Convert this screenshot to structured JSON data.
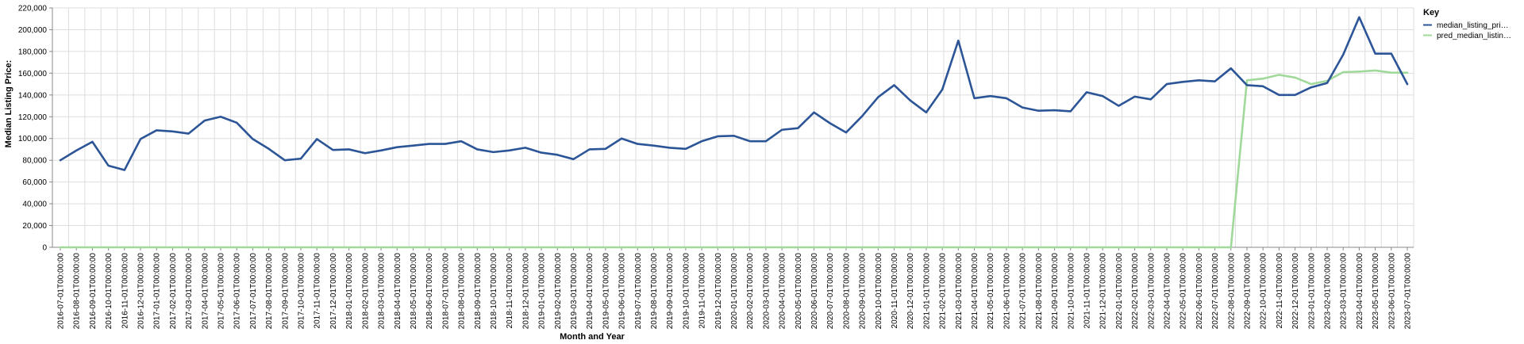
{
  "chart_data": {
    "type": "line",
    "xlabel": "Month and Year",
    "ylabel": "Median Listing Price:",
    "ylim": [
      0,
      220000
    ],
    "yticks": [
      "0",
      "20,000",
      "40,000",
      "60,000",
      "80,000",
      "100,000",
      "120,000",
      "140,000",
      "160,000",
      "180,000",
      "200,000",
      "220,000"
    ],
    "grid": true,
    "legend": {
      "title": "Key",
      "placement": "top-right",
      "entries": [
        "median_listing_pri…",
        "pred_median_listin…"
      ]
    },
    "colors": {
      "median_listing_price": "#2c5597",
      "pred_median_listing_price": "#a1d99b",
      "grid": "#dddddd",
      "axis": "#888888"
    },
    "categories": [
      "2016-07-01T00:00:00",
      "2016-08-01T00:00:00",
      "2016-09-01T00:00:00",
      "2016-10-01T00:00:00",
      "2016-11-01T00:00:00",
      "2016-12-01T00:00:00",
      "2017-01-01T00:00:00",
      "2017-02-01T00:00:00",
      "2017-03-01T00:00:00",
      "2017-04-01T00:00:00",
      "2017-05-01T00:00:00",
      "2017-06-01T00:00:00",
      "2017-07-01T00:00:00",
      "2017-08-01T00:00:00",
      "2017-09-01T00:00:00",
      "2017-10-01T00:00:00",
      "2017-11-01T00:00:00",
      "2017-12-01T00:00:00",
      "2018-01-01T00:00:00",
      "2018-02-01T00:00:00",
      "2018-03-01T00:00:00",
      "2018-04-01T00:00:00",
      "2018-05-01T00:00:00",
      "2018-06-01T00:00:00",
      "2018-07-01T00:00:00",
      "2018-08-01T00:00:00",
      "2018-09-01T00:00:00",
      "2018-10-01T00:00:00",
      "2018-11-01T00:00:00",
      "2018-12-01T00:00:00",
      "2019-01-01T00:00:00",
      "2019-02-01T00:00:00",
      "2019-03-01T00:00:00",
      "2019-04-01T00:00:00",
      "2019-05-01T00:00:00",
      "2019-06-01T00:00:00",
      "2019-07-01T00:00:00",
      "2019-08-01T00:00:00",
      "2019-09-01T00:00:00",
      "2019-10-01T00:00:00",
      "2019-11-01T00:00:00",
      "2019-12-01T00:00:00",
      "2020-01-01T00:00:00",
      "2020-02-01T00:00:00",
      "2020-03-01T00:00:00",
      "2020-04-01T00:00:00",
      "2020-05-01T00:00:00",
      "2020-06-01T00:00:00",
      "2020-07-01T00:00:00",
      "2020-08-01T00:00:00",
      "2020-09-01T00:00:00",
      "2020-10-01T00:00:00",
      "2020-11-01T00:00:00",
      "2020-12-01T00:00:00",
      "2021-01-01T00:00:00",
      "2021-02-01T00:00:00",
      "2021-03-01T00:00:00",
      "2021-04-01T00:00:00",
      "2021-05-01T00:00:00",
      "2021-06-01T00:00:00",
      "2021-07-01T00:00:00",
      "2021-08-01T00:00:00",
      "2021-09-01T00:00:00",
      "2021-10-01T00:00:00",
      "2021-11-01T00:00:00",
      "2021-12-01T00:00:00",
      "2022-01-01T00:00:00",
      "2022-02-01T00:00:00",
      "2022-03-01T00:00:00",
      "2022-04-01T00:00:00",
      "2022-05-01T00:00:00",
      "2022-06-01T00:00:00",
      "2022-07-01T00:00:00",
      "2022-08-01T00:00:00",
      "2022-09-01T00:00:00",
      "2022-10-01T00:00:00",
      "2022-11-01T00:00:00",
      "2022-12-01T00:00:00",
      "2023-01-01T00:00:00",
      "2023-02-01T00:00:00",
      "2023-03-01T00:00:00",
      "2023-04-01T00:00:00",
      "2023-05-01T00:00:00",
      "2023-06-01T00:00:00",
      "2023-07-01T00:00:00"
    ],
    "series": [
      {
        "name": "median_listing_pri…",
        "values": [
          80000,
          89000,
          97000,
          75000,
          71000,
          99500,
          107500,
          106500,
          104500,
          116500,
          120000,
          114500,
          99500,
          90500,
          80000,
          81500,
          99500,
          89500,
          90000,
          86500,
          89000,
          92000,
          93500,
          95000,
          95000,
          97500,
          90000,
          87500,
          89000,
          91500,
          87000,
          85000,
          81000,
          90000,
          90500,
          100000,
          95000,
          93500,
          91500,
          90500,
          97500,
          102000,
          102500,
          97500,
          97500,
          108000,
          109500,
          124000,
          114000,
          105500,
          120500,
          138000,
          149000,
          135000,
          124000,
          145000,
          190000,
          137000,
          139000,
          137000,
          128500,
          125500,
          126000,
          125000,
          142500,
          139000,
          130000,
          138500,
          136000,
          150000,
          152000,
          153500,
          152500,
          164500,
          149000,
          148000,
          140000,
          140000,
          147000,
          151000,
          177000,
          211500,
          178000,
          178000,
          150000
        ]
      },
      {
        "name": "pred_median_listin…",
        "values": [
          0,
          0,
          0,
          0,
          0,
          0,
          0,
          0,
          0,
          0,
          0,
          0,
          0,
          0,
          0,
          0,
          0,
          0,
          0,
          0,
          0,
          0,
          0,
          0,
          0,
          0,
          0,
          0,
          0,
          0,
          0,
          0,
          0,
          0,
          0,
          0,
          0,
          0,
          0,
          0,
          0,
          0,
          0,
          0,
          0,
          0,
          0,
          0,
          0,
          0,
          0,
          0,
          0,
          0,
          0,
          0,
          0,
          0,
          0,
          0,
          0,
          0,
          0,
          0,
          0,
          0,
          0,
          0,
          0,
          0,
          0,
          0,
          0,
          0,
          153500,
          155000,
          158500,
          156000,
          150000,
          153000,
          161000,
          161500,
          162500,
          160500,
          160500
        ]
      }
    ]
  }
}
